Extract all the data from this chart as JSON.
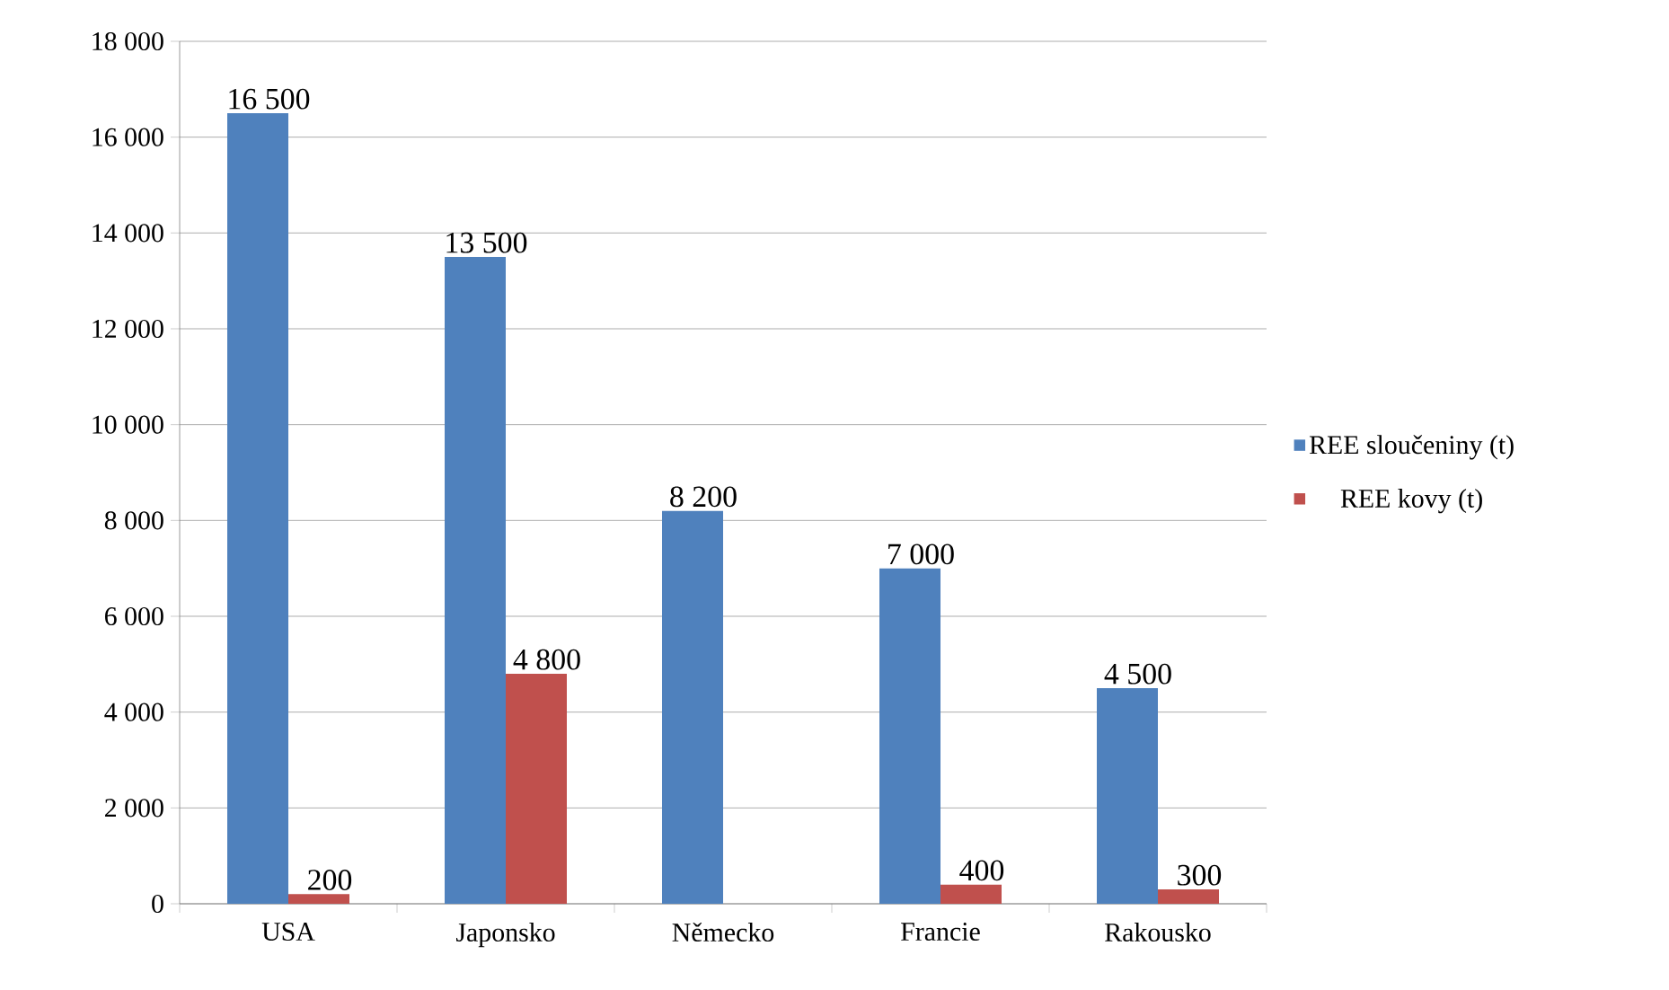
{
  "chart_data": {
    "type": "bar",
    "categories": [
      "USA",
      "Japonsko",
      "Německo",
      "Francie",
      "Rakousko"
    ],
    "series": [
      {
        "name": "REE sloučeniny (t)",
        "color": "#4f81bd",
        "values": [
          16500,
          13500,
          8200,
          7000,
          4500
        ],
        "value_labels": [
          "16 500",
          "13 500",
          "8 200",
          "7 000",
          "4 500"
        ]
      },
      {
        "name": "REE kovy (t)",
        "color": "#c0504d",
        "values": [
          200,
          4800,
          null,
          400,
          300
        ],
        "value_labels": [
          "200",
          "4 800",
          null,
          "400",
          "300"
        ]
      }
    ],
    "ylim": [
      0,
      18000
    ],
    "yticks": [
      {
        "value": 0,
        "label": "0"
      },
      {
        "value": 2000,
        "label": "2 000"
      },
      {
        "value": 4000,
        "label": "4 000"
      },
      {
        "value": 6000,
        "label": "6 000"
      },
      {
        "value": 8000,
        "label": "8 000"
      },
      {
        "value": 10000,
        "label": "10 000"
      },
      {
        "value": 12000,
        "label": "12 000"
      },
      {
        "value": 14000,
        "label": "14 000"
      },
      {
        "value": 16000,
        "label": "16 000"
      },
      {
        "value": 18000,
        "label": "18 000"
      }
    ],
    "grid": "y",
    "legend": "right"
  }
}
